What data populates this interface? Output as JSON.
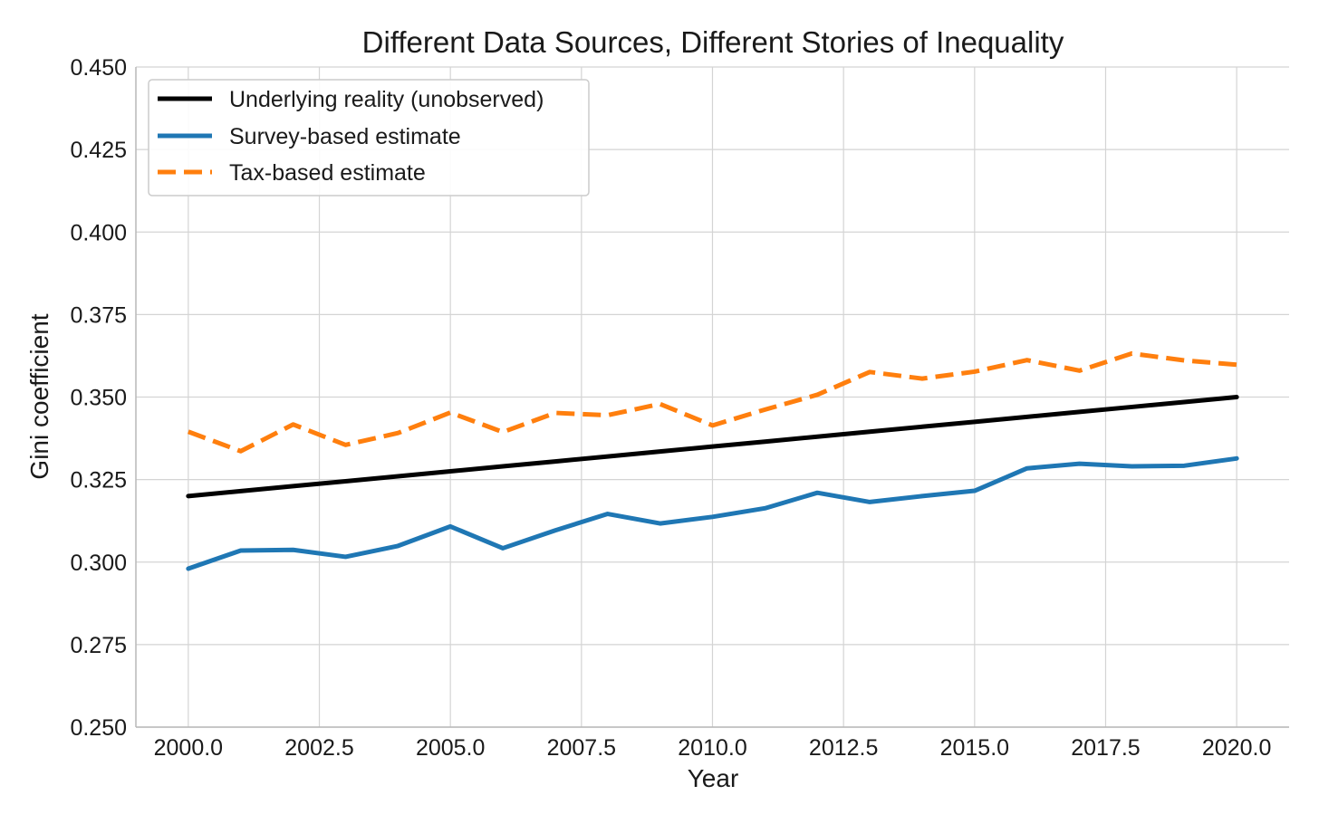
{
  "chart_data": {
    "type": "line",
    "title": "Different Data Sources, Different Stories of Inequality",
    "xlabel": "Year",
    "ylabel": "Gini coefficient",
    "xlim": [
      1999.0,
      2021.0
    ],
    "ylim": [
      0.25,
      0.45
    ],
    "xticks": [
      2000.0,
      2002.5,
      2005.0,
      2007.5,
      2010.0,
      2012.5,
      2015.0,
      2017.5,
      2020.0
    ],
    "xtick_labels": [
      "2000.0",
      "2002.5",
      "2005.0",
      "2007.5",
      "2010.0",
      "2012.5",
      "2015.0",
      "2017.5",
      "2020.0"
    ],
    "yticks": [
      0.25,
      0.275,
      0.3,
      0.325,
      0.35,
      0.375,
      0.4,
      0.425,
      0.45
    ],
    "ytick_labels": [
      "0.250",
      "0.275",
      "0.300",
      "0.325",
      "0.350",
      "0.375",
      "0.400",
      "0.425",
      "0.450"
    ],
    "grid": true,
    "legend_position": "top-left",
    "x": [
      2000,
      2001,
      2002,
      2003,
      2004,
      2005,
      2006,
      2007,
      2008,
      2009,
      2010,
      2011,
      2012,
      2013,
      2014,
      2015,
      2016,
      2017,
      2018,
      2019,
      2020
    ],
    "series": [
      {
        "name": "Underlying reality (unobserved)",
        "color": "#000000",
        "style": "solid",
        "values": [
          0.32,
          0.3215,
          0.323,
          0.3245,
          0.326,
          0.3275,
          0.329,
          0.3305,
          0.332,
          0.3335,
          0.335,
          0.3365,
          0.338,
          0.3395,
          0.341,
          0.3425,
          0.344,
          0.3455,
          0.347,
          0.3485,
          0.35
        ]
      },
      {
        "name": "Survey-based estimate",
        "color": "#1f77b4",
        "style": "solid",
        "values": [
          0.298,
          0.3035,
          0.3037,
          0.3016,
          0.3049,
          0.3108,
          0.3042,
          0.3096,
          0.3146,
          0.3117,
          0.3137,
          0.3163,
          0.321,
          0.3182,
          0.32,
          0.3216,
          0.3284,
          0.3298,
          0.329,
          0.3292,
          0.3314
        ]
      },
      {
        "name": "Tax-based estimate",
        "color": "#ff7f0e",
        "style": "dashed",
        "values": [
          0.3395,
          0.3336,
          0.3417,
          0.3355,
          0.3391,
          0.3453,
          0.3394,
          0.3452,
          0.3445,
          0.3479,
          0.3414,
          0.3462,
          0.3507,
          0.3576,
          0.3556,
          0.3577,
          0.3612,
          0.358,
          0.3632,
          0.3611,
          0.3598
        ]
      }
    ]
  }
}
